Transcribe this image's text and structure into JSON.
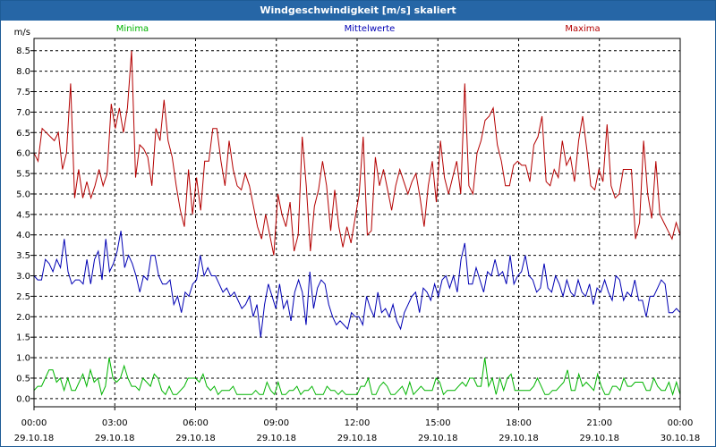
{
  "window": {
    "title": "Windgeschwindigkeit [m/s] skaliert"
  },
  "chart_data": {
    "type": "line",
    "title": "Windgeschwindigkeit [m/s] skaliert",
    "ylabel": "m/s",
    "ylim": [
      -0.2,
      8.8
    ],
    "xlim": [
      0,
      24
    ],
    "yticks": [
      "0.0",
      "0.5",
      "1.0",
      "1.5",
      "2.0",
      "2.5",
      "3.0",
      "3.5",
      "4.0",
      "4.5",
      "5.0",
      "5.5",
      "6.0",
      "6.5",
      "7.0",
      "7.5",
      "8.0",
      "8.5"
    ],
    "xticks": [
      {
        "time": "00:00",
        "date": "29.10.18"
      },
      {
        "time": "03:00",
        "date": "29.10.18"
      },
      {
        "time": "06:00",
        "date": "29.10.18"
      },
      {
        "time": "09:00",
        "date": "29.10.18"
      },
      {
        "time": "12:00",
        "date": "29.10.18"
      },
      {
        "time": "15:00",
        "date": "29.10.18"
      },
      {
        "time": "18:00",
        "date": "29.10.18"
      },
      {
        "time": "21:00",
        "date": "29.10.18"
      },
      {
        "time": "00:00",
        "date": "30.10.18"
      }
    ],
    "grid": true,
    "legend": "top",
    "series": [
      {
        "name": "Minima",
        "color": "#00b400",
        "values": [
          0.2,
          0.3,
          0.3,
          0.5,
          0.7,
          0.7,
          0.4,
          0.5,
          0.2,
          0.5,
          0.2,
          0.2,
          0.4,
          0.6,
          0.3,
          0.7,
          0.4,
          0.5,
          0.1,
          0.3,
          1.0,
          0.5,
          0.4,
          0.5,
          0.8,
          0.5,
          0.3,
          0.3,
          0.2,
          0.5,
          0.4,
          0.3,
          0.6,
          0.5,
          0.2,
          0.1,
          0.3,
          0.1,
          0.1,
          0.2,
          0.3,
          0.5,
          0.5,
          0.5,
          0.4,
          0.6,
          0.3,
          0.2,
          0.3,
          0.1,
          0.2,
          0.2,
          0.2,
          0.3,
          0.1,
          0.1,
          0.1,
          0.1,
          0.1,
          0.2,
          0.1,
          0.1,
          0.4,
          0.2,
          0.1,
          0.4,
          0.1,
          0.1,
          0.2,
          0.2,
          0.3,
          0.1,
          0.2,
          0.2,
          0.3,
          0.1,
          0.1,
          0.1,
          0.3,
          0.2,
          0.2,
          0.1,
          0.2,
          0.1,
          0.1,
          0.1,
          0.1,
          0.3,
          0.3,
          0.5,
          0.1,
          0.1,
          0.3,
          0.4,
          0.3,
          0.1,
          0.1,
          0.2,
          0.3,
          0.1,
          0.4,
          0.1,
          0.2,
          0.3,
          0.2,
          0.2,
          0.2,
          0.5,
          0.4,
          0.1,
          0.2,
          0.2,
          0.2,
          0.3,
          0.4,
          0.3,
          0.5,
          0.5,
          0.3,
          0.3,
          1.0,
          0.3,
          0.5,
          0.1,
          0.5,
          0.2,
          0.5,
          0.6,
          0.2,
          0.2,
          0.2,
          0.2,
          0.2,
          0.3,
          0.5,
          0.3,
          0.1,
          0.1,
          0.2,
          0.2,
          0.3,
          0.4,
          0.7,
          0.2,
          0.2,
          0.6,
          0.3,
          0.4,
          0.3,
          0.2,
          0.6,
          0.3,
          0.1,
          0.1,
          0.3,
          0.3,
          0.2,
          0.5,
          0.3,
          0.3,
          0.4,
          0.4,
          0.4,
          0.2,
          0.2,
          0.5,
          0.3,
          0.2,
          0.2,
          0.4,
          0.1,
          0.4,
          0.1
        ]
      },
      {
        "name": "Mittelwerte",
        "color": "#0000b4",
        "values": [
          3.0,
          2.9,
          2.9,
          3.4,
          3.3,
          3.1,
          3.4,
          3.2,
          3.9,
          3.1,
          2.8,
          2.9,
          2.9,
          2.8,
          3.4,
          2.8,
          3.4,
          3.6,
          2.9,
          3.9,
          3.1,
          3.3,
          3.6,
          4.1,
          3.2,
          3.5,
          3.3,
          3.0,
          2.6,
          3.0,
          2.9,
          3.5,
          3.5,
          3.0,
          2.8,
          2.8,
          2.9,
          2.3,
          2.5,
          2.1,
          2.6,
          2.5,
          2.8,
          2.9,
          3.5,
          3.0,
          3.2,
          3.0,
          3.0,
          2.8,
          2.6,
          2.7,
          2.5,
          2.6,
          2.4,
          2.2,
          2.3,
          2.5,
          2.0,
          2.3,
          1.5,
          2.3,
          2.8,
          2.5,
          2.2,
          2.8,
          2.2,
          2.4,
          1.9,
          2.6,
          2.9,
          2.6,
          1.8,
          3.1,
          2.2,
          2.7,
          2.9,
          2.8,
          2.3,
          2.0,
          1.8,
          1.9,
          1.8,
          1.7,
          2.1,
          2.0,
          2.0,
          1.8,
          2.5,
          2.2,
          2.0,
          2.6,
          2.1,
          2.2,
          2.0,
          2.3,
          1.9,
          1.7,
          2.1,
          2.3,
          2.5,
          2.6,
          2.1,
          2.7,
          2.6,
          2.4,
          2.8,
          2.5,
          2.9,
          3.0,
          2.7,
          3.0,
          2.6,
          3.4,
          3.8,
          2.8,
          2.8,
          3.2,
          2.9,
          2.6,
          3.1,
          3.0,
          3.4,
          3.0,
          3.1,
          2.8,
          3.5,
          2.8,
          3.0,
          3.1,
          3.5,
          3.0,
          2.9,
          2.6,
          2.7,
          3.3,
          2.7,
          2.6,
          3.0,
          2.8,
          2.5,
          2.9,
          2.6,
          2.5,
          2.9,
          2.6,
          2.5,
          2.8,
          2.3,
          2.7,
          2.6,
          2.9,
          2.6,
          2.4,
          3.0,
          2.9,
          2.4,
          2.6,
          2.5,
          2.9,
          2.4,
          2.4,
          2.0,
          2.5,
          2.5,
          2.7,
          2.9,
          2.8,
          2.1,
          2.1,
          2.2,
          2.1
        ]
      },
      {
        "name": "Maxima",
        "color": "#b40000",
        "values": [
          6.0,
          5.8,
          6.6,
          6.5,
          6.4,
          6.3,
          6.5,
          5.6,
          6.0,
          7.7,
          4.9,
          5.6,
          4.9,
          5.3,
          4.9,
          5.2,
          5.6,
          5.2,
          5.5,
          7.2,
          6.6,
          7.1,
          6.5,
          7.1,
          8.5,
          5.4,
          6.2,
          6.1,
          5.9,
          5.2,
          6.6,
          6.3,
          7.3,
          6.3,
          5.9,
          5.2,
          4.6,
          4.2,
          5.6,
          4.5,
          5.4,
          4.6,
          5.8,
          5.8,
          6.6,
          6.6,
          5.8,
          5.2,
          6.3,
          5.6,
          5.2,
          5.1,
          5.5,
          5.2,
          4.7,
          4.2,
          3.9,
          4.5,
          4.0,
          3.5,
          5.0,
          4.5,
          4.2,
          4.8,
          3.6,
          4.0,
          6.4,
          5.2,
          3.6,
          4.7,
          5.1,
          5.8,
          5.2,
          4.1,
          5.1,
          4.2,
          3.7,
          4.2,
          3.8,
          4.4,
          5.0,
          6.4,
          4.0,
          4.1,
          5.9,
          5.2,
          5.6,
          5.1,
          4.6,
          5.2,
          5.6,
          5.3,
          5.0,
          5.3,
          5.5,
          4.9,
          4.2,
          5.2,
          5.8,
          4.8,
          6.3,
          5.4,
          5.0,
          5.4,
          5.8,
          5.0,
          7.7,
          5.2,
          5.0,
          6.0,
          6.3,
          6.8,
          6.9,
          7.1,
          6.2,
          5.8,
          5.2,
          5.2,
          5.7,
          5.8,
          5.7,
          5.7,
          5.3,
          6.2,
          6.4,
          6.9,
          5.3,
          5.2,
          5.6,
          5.4,
          6.3,
          5.7,
          5.9,
          5.3,
          6.3,
          6.9,
          6.1,
          5.2,
          5.1,
          5.6,
          5.3,
          6.7,
          5.2,
          4.9,
          5.0,
          5.6,
          5.6,
          5.6,
          3.9,
          4.3,
          6.3,
          5.0,
          4.4,
          5.8,
          4.5,
          4.3,
          4.1,
          3.9,
          4.3,
          4.0
        ]
      }
    ]
  }
}
